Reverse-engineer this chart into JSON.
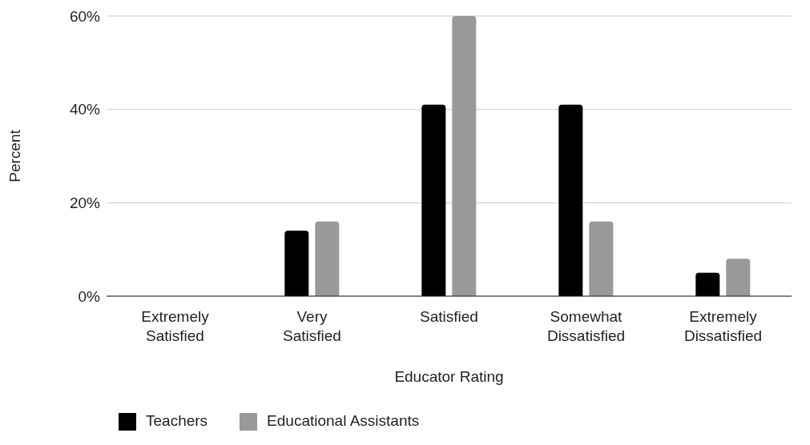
{
  "chart_data": {
    "type": "bar",
    "xlabel": "Educator Rating",
    "ylabel": "Percent",
    "categories": [
      "Extremely Satisfied",
      "Very Satisfied",
      "Satisfied",
      "Somewhat Dissatisfied",
      "Extremely Dissatisfied"
    ],
    "series": [
      {
        "name": "Teachers",
        "color": "#000000",
        "values": [
          0,
          14,
          41,
          41,
          5
        ]
      },
      {
        "name": "Educational Assistants",
        "color": "#999999",
        "values": [
          0,
          16,
          60,
          16,
          8
        ]
      }
    ],
    "ylim": [
      0,
      60
    ],
    "yticks": [
      {
        "value": 0,
        "label": "0%"
      },
      {
        "value": 20,
        "label": "20%"
      },
      {
        "value": 40,
        "label": "40%"
      },
      {
        "value": 60,
        "label": "60%"
      }
    ],
    "grid": "y",
    "legend": "bottom"
  }
}
